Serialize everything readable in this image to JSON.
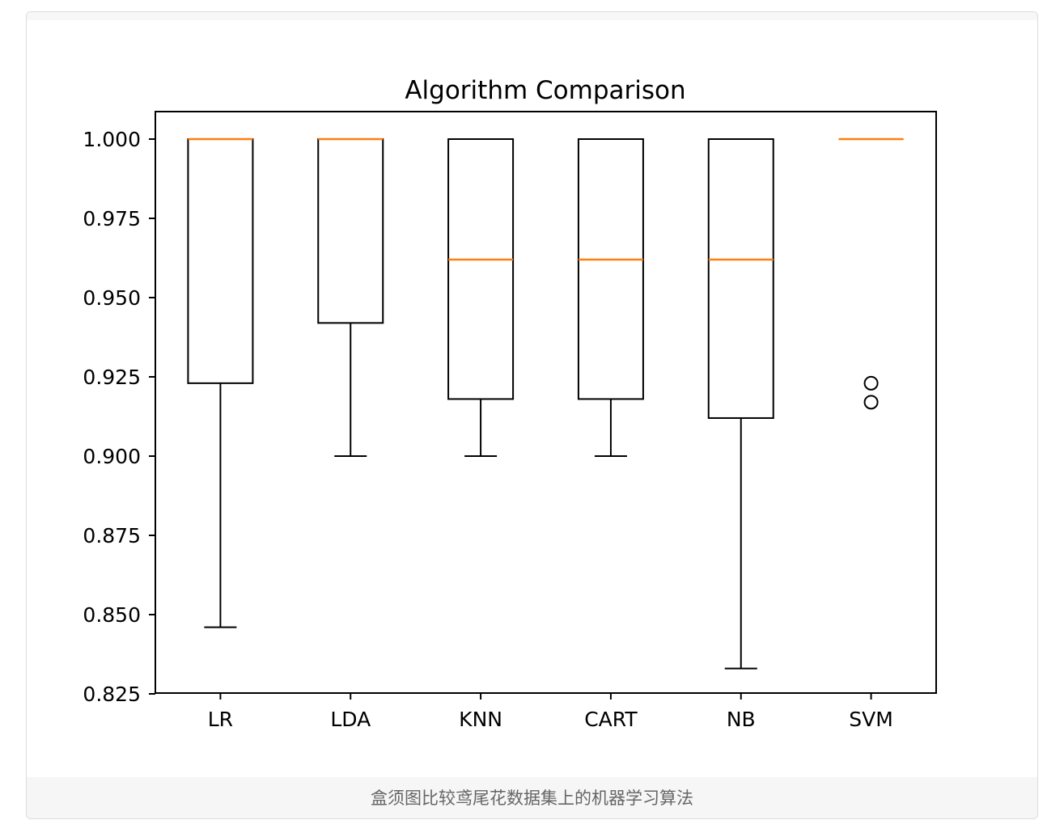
{
  "caption": "盒须图比较鸢尾花数据集上的机器学习算法",
  "chart_data": {
    "type": "box",
    "title": "Algorithm Comparison",
    "xlabel": "",
    "ylabel": "",
    "ylim": [
      0.825,
      1.008
    ],
    "yticks": [
      "0.825",
      "0.850",
      "0.875",
      "0.900",
      "0.925",
      "0.950",
      "0.975",
      "1.000"
    ],
    "grid": false,
    "colors": {
      "median": "#ff7f0e",
      "box": "#000000"
    },
    "categories": [
      "LR",
      "LDA",
      "KNN",
      "CART",
      "NB",
      "SVM"
    ],
    "boxes": [
      {
        "name": "LR",
        "whislo": 0.846,
        "q1": 0.923,
        "med": 1.0,
        "q3": 1.0,
        "whishi": 1.0,
        "fliers": []
      },
      {
        "name": "LDA",
        "whislo": 0.9,
        "q1": 0.942,
        "med": 1.0,
        "q3": 1.0,
        "whishi": 1.0,
        "fliers": []
      },
      {
        "name": "KNN",
        "whislo": 0.9,
        "q1": 0.918,
        "med": 0.962,
        "q3": 1.0,
        "whishi": 1.0,
        "fliers": []
      },
      {
        "name": "CART",
        "whislo": 0.9,
        "q1": 0.918,
        "med": 0.962,
        "q3": 1.0,
        "whishi": 1.0,
        "fliers": []
      },
      {
        "name": "NB",
        "whislo": 0.833,
        "q1": 0.912,
        "med": 0.962,
        "q3": 1.0,
        "whishi": 1.0,
        "fliers": []
      },
      {
        "name": "SVM",
        "whislo": 1.0,
        "q1": 1.0,
        "med": 1.0,
        "q3": 1.0,
        "whishi": 1.0,
        "fliers": [
          0.923,
          0.917
        ]
      }
    ]
  }
}
